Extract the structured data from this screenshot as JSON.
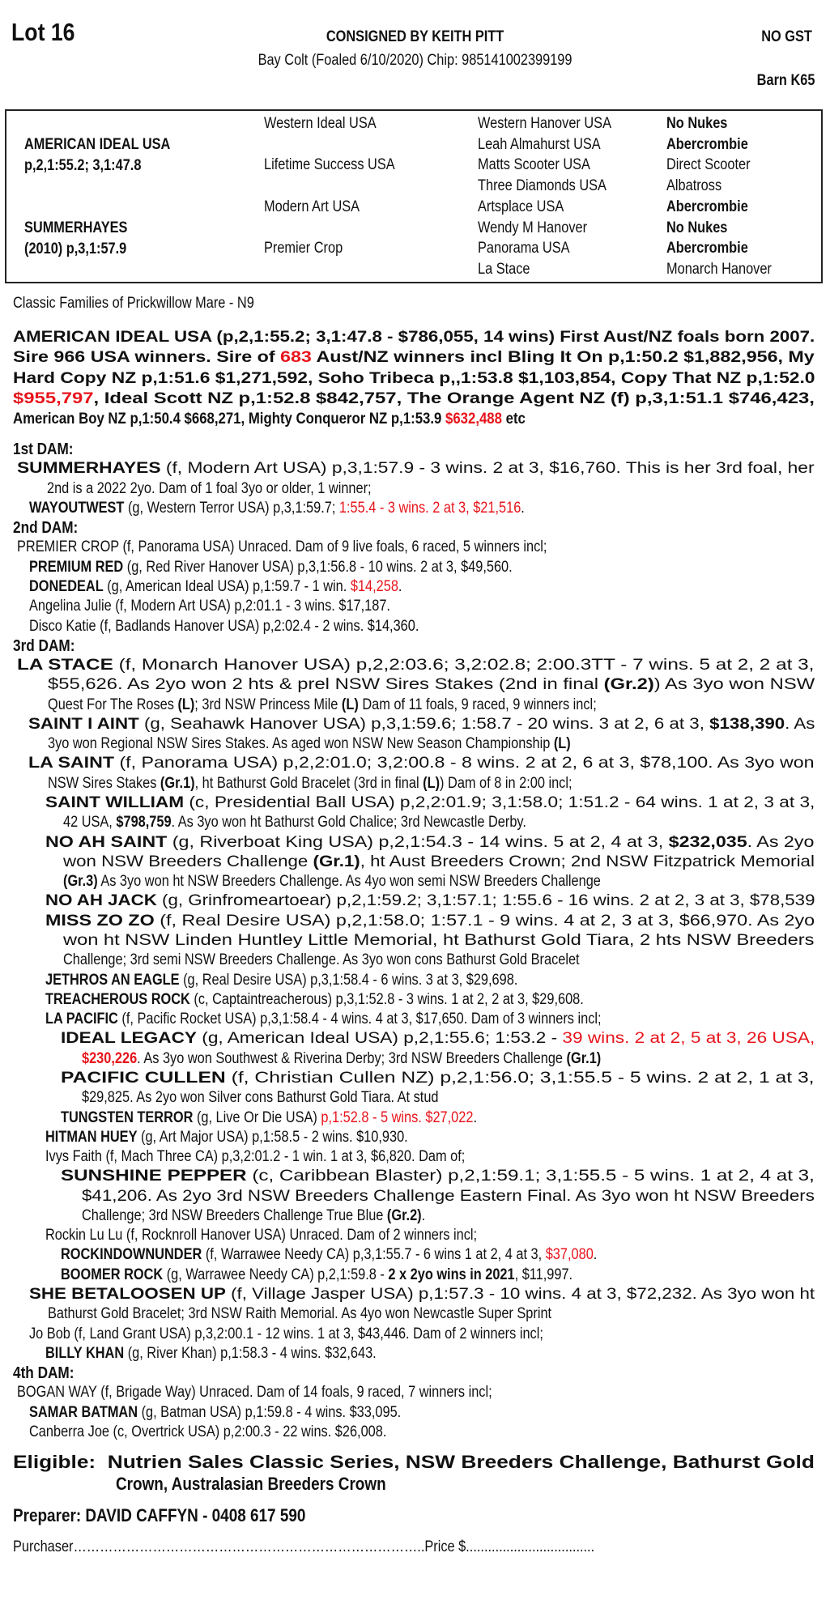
{
  "header": {
    "lot": "Lot 16",
    "consignor": "CONSIGNED BY KEITH PITT",
    "gst": "NO GST",
    "description": "Bay Colt (Foaled 6/10/2020) Chip: 985141002399199",
    "barn": "Barn K65"
  },
  "colors": {
    "text": "#111111",
    "highlight_red": "#e8141c",
    "border": "#222222"
  },
  "pedigree": {
    "sire": {
      "name": "AMERICAN IDEAL USA",
      "record": "p,2,1:55.2; 3,1:47.8"
    },
    "dam": {
      "name": "SUMMERHAYES",
      "record": "(2010) p,3,1:57.9"
    },
    "grandparents": [
      "Western Ideal USA",
      "Lifetime Success USA",
      "Modern Art USA",
      "Premier Crop"
    ],
    "great_grandparents": [
      "Western Hanover USA",
      "Leah Almahurst USA",
      "Matts Scooter USA",
      "Three Diamonds USA",
      "Artsplace USA",
      "Wendy M Hanover",
      "Panorama USA",
      "La Stace"
    ],
    "great_great_grandparents": [
      {
        "name": "No Nukes",
        "bold": true
      },
      {
        "name": "Abercrombie",
        "bold": true
      },
      {
        "name": "Direct Scooter",
        "bold": false
      },
      {
        "name": "Albatross",
        "bold": false
      },
      {
        "name": "Abercrombie",
        "bold": true
      },
      {
        "name": "No Nukes",
        "bold": true
      },
      {
        "name": "Abercrombie",
        "bold": true
      },
      {
        "name": "Monarch Hanover",
        "bold": false
      }
    ]
  },
  "family": "Classic Families of Prickwillow Mare - N9",
  "sire_notes": [
    [
      {
        "t": "AMERICAN IDEAL USA (p,2,1:55.2; 3,1:47.8 - $786,055, 14 wins) First Aust/NZ foals born 2007."
      }
    ],
    [
      {
        "t": "Sire 966 USA winners. Sire of "
      },
      {
        "t": "683",
        "red": true
      },
      {
        "t": " Aust/NZ winners incl Bling It On p,1:50.2 $1,882,956, My"
      }
    ],
    [
      {
        "t": "Hard Copy NZ p,1:51.6 $1,271,592, Soho Tribeca p,,1:53.8 $1,103,854, Copy That NZ p,1:52.0"
      }
    ],
    [
      {
        "t": "$955,797",
        "red": true
      },
      {
        "t": ", Ideal Scott NZ p,1:52.8 $842,757, The Orange Agent NZ (f) p,3,1:51.1 $746,423,"
      }
    ],
    [
      {
        "t": "American Boy NZ p,1:50.4 $668,271, Mighty Conqueror NZ p,1:53.9 "
      },
      {
        "t": "$632,488",
        "red": true
      },
      {
        "t": " etc"
      }
    ]
  ],
  "extended_pedigree": [
    [
      {
        "t": "1st DAM:",
        "b": true
      }
    ],
    [
      {
        "t": "SUMMERHAYES",
        "b": true
      },
      {
        "t": " (f, Modern Art USA) p,3,1:57.9 - 3 wins. 2 at 3, $16,760. This is her 3rd foal, her"
      }
    ],
    [
      {
        "t": "2nd is a 2022 2yo. Dam of 1 foal 3yo or older, 1 winner;"
      }
    ],
    [
      {
        "t": "WAYOUTWEST",
        "b": true
      },
      {
        "t": " (g, Western Terror USA) p,3,1:59.7; "
      },
      {
        "t": "1:55.4 - 3 wins. 2 at 3, $21,516",
        "red": true
      },
      {
        "t": "."
      }
    ],
    [
      {
        "t": "2nd DAM:",
        "b": true
      }
    ],
    [
      {
        "t": "PREMIER CROP (f, Panorama USA) Unraced. Dam of 9 live foals, 6 raced, 5 winners incl;"
      }
    ],
    [
      {
        "t": "PREMIUM RED",
        "b": true
      },
      {
        "t": " (g, Red River Hanover USA) p,3,1:56.8 - 10 wins. 2 at 3, $49,560."
      }
    ],
    [
      {
        "t": "DONEDEAL",
        "b": true
      },
      {
        "t": " (g, American Ideal USA) p,1:59.7 - 1 win. "
      },
      {
        "t": "$14,258",
        "red": true
      },
      {
        "t": "."
      }
    ],
    [
      {
        "t": "Angelina Julie (f, Modern Art USA) p,2:01.1 - 3 wins. $17,187."
      }
    ],
    [
      {
        "t": "Disco Katie (f, Badlands Hanover USA) p,2:02.4 - 2 wins. $14,360."
      }
    ],
    [
      {
        "t": "3rd DAM:",
        "b": true
      }
    ],
    [
      {
        "t": "LA STACE",
        "b": true
      },
      {
        "t": " (f, Monarch Hanover USA) p,2,2:03.6; 3,2:02.8; 2:00.3TT - 7 wins. 5 at 2, 2 at 3,"
      }
    ],
    [
      {
        "t": "$55,626. As 2yo won 2 hts & prel NSW Sires Stakes (2nd in final "
      },
      {
        "t": "(Gr.2)",
        "b": true
      },
      {
        "t": ") As 3yo won NSW"
      }
    ],
    [
      {
        "t": "Quest For The Roses "
      },
      {
        "t": "(L)",
        "b": true
      },
      {
        "t": "; 3rd NSW Princess Mile "
      },
      {
        "t": "(L)",
        "b": true
      },
      {
        "t": " Dam of 11 foals, 9 raced, 9 winners incl;"
      }
    ],
    [
      {
        "t": "SAINT I AINT",
        "b": true
      },
      {
        "t": " (g, Seahawk Hanover USA) p,3,1:59.6; 1:58.7 - 20 wins. 3 at 2, 6 at 3, "
      },
      {
        "t": "$138,390",
        "b": true
      },
      {
        "t": ". As"
      }
    ],
    [
      {
        "t": "3yo won Regional NSW Sires Stakes. As aged won NSW New Season Championship "
      },
      {
        "t": "(L)",
        "b": true
      }
    ],
    [
      {
        "t": "LA SAINT",
        "b": true
      },
      {
        "t": " (f, Panorama USA) p,2,2:01.0; 3,2:00.8 - 8 wins. 2 at 2, 6 at 3, $78,100. As 3yo won"
      }
    ],
    [
      {
        "t": "NSW Sires Stakes "
      },
      {
        "t": "(Gr.1)",
        "b": true
      },
      {
        "t": ", ht Bathurst Gold Bracelet (3rd in final "
      },
      {
        "t": "(L)",
        "b": true
      },
      {
        "t": ") Dam of 8 in 2:00 incl;"
      }
    ],
    [
      {
        "t": "SAINT WILLIAM",
        "b": true
      },
      {
        "t": " (c, Presidential Ball USA) p,2,2:01.9; 3,1:58.0; 1:51.2 - 64 wins. 1 at 2, 3 at 3,"
      }
    ],
    [
      {
        "t": "42 USA, "
      },
      {
        "t": "$798,759",
        "b": true
      },
      {
        "t": ". As 3yo won ht Bathurst Gold Chalice; 3rd Newcastle Derby."
      }
    ],
    [
      {
        "t": "NO AH SAINT",
        "b": true
      },
      {
        "t": " (g, Riverboat King USA) p,2,1:54.3 - 14 wins. 5 at 2, 4 at 3, "
      },
      {
        "t": "$232,035",
        "b": true
      },
      {
        "t": ". As 2yo"
      }
    ],
    [
      {
        "t": "won NSW Breeders Challenge "
      },
      {
        "t": "(Gr.1)",
        "b": true
      },
      {
        "t": ", ht Aust Breeders Crown; 2nd NSW Fitzpatrick Memorial"
      }
    ],
    [
      {
        "t": "(Gr.3)",
        "b": true
      },
      {
        "t": " As 3yo won ht NSW Breeders Challenge. As 4yo won semi NSW Breeders Challenge"
      }
    ],
    [
      {
        "t": "NO AH JACK",
        "b": true
      },
      {
        "t": " (g, Grinfromeartoear) p,2,1:59.2; 3,1:57.1; 1:55.6 - 16 wins. 2 at 2, 3 at 3, $78,539"
      }
    ],
    [
      {
        "t": "MISS ZO ZO",
        "b": true
      },
      {
        "t": " (f, Real Desire USA) p,2,1:58.0; 1:57.1 - 9 wins. 4 at 2, 3 at 3, $66,970. As 2yo"
      }
    ],
    [
      {
        "t": "won ht NSW Linden Huntley Little Memorial, ht Bathurst Gold Tiara, 2 hts NSW Breeders"
      }
    ],
    [
      {
        "t": "Challenge; 3rd semi NSW Breeders Challenge. As 3yo won cons Bathurst Gold Bracelet"
      }
    ],
    [
      {
        "t": "JETHROS AN EAGLE",
        "b": true
      },
      {
        "t": " (g, Real Desire USA) p,3,1:58.4 - 6 wins. 3 at 3, $29,698."
      }
    ],
    [
      {
        "t": "TREACHEROUS ROCK",
        "b": true
      },
      {
        "t": " (c, Captaintreacherous) p,3,1:52.8 - 3 wins. 1 at 2, 2 at 3, $29,608."
      }
    ],
    [
      {
        "t": "LA PACIFIC",
        "b": true
      },
      {
        "t": " (f, Pacific Rocket USA) p,3,1:58.4 - 4 wins. 4 at 3, $17,650. Dam of 3 winners incl;"
      }
    ],
    [
      {
        "t": "IDEAL LEGACY",
        "b": true
      },
      {
        "t": " (g, American Ideal USA) p,2,1:55.6; 1:53.2 - "
      },
      {
        "t": "39 wins. 2 at 2, 5 at 3, 26 USA,",
        "red": true
      }
    ],
    [
      {
        "t": "$230,226",
        "red": true,
        "b": true
      },
      {
        "t": ". As 3yo won Southwest & Riverina Derby; 3rd NSW Breeders Challenge "
      },
      {
        "t": "(Gr.1)",
        "b": true
      }
    ],
    [
      {
        "t": "PACIFIC CULLEN",
        "b": true
      },
      {
        "t": " (f, Christian Cullen NZ) p,2,1:56.0; 3,1:55.5 - 5 wins. 2 at 2, 1 at 3,"
      }
    ],
    [
      {
        "t": "$29,825. As 2yo won Silver cons Bathurst Gold Tiara. At stud"
      }
    ],
    [
      {
        "t": "TUNGSTEN TERROR",
        "b": true
      },
      {
        "t": " (g, Live Or Die USA) "
      },
      {
        "t": "p,1:52.8 - 5 wins. $27,022",
        "red": true
      },
      {
        "t": "."
      }
    ],
    [
      {
        "t": "HITMAN HUEY",
        "b": true
      },
      {
        "t": " (g, Art Major USA) p,1:58.5 - 2 wins. $10,930."
      }
    ],
    [
      {
        "t": "Ivys Faith (f, Mach Three CA) p,3,2:01.2 - 1 win. 1 at 3, $6,820. Dam of;"
      }
    ],
    [
      {
        "t": "SUNSHINE PEPPER",
        "b": true
      },
      {
        "t": " (c, Caribbean Blaster) p,2,1:59.1; 3,1:55.5 - 5 wins. 1 at 2, 4 at 3,"
      }
    ],
    [
      {
        "t": "$41,206. As 2yo 3rd NSW Breeders Challenge Eastern Final. As 3yo won ht NSW Breeders"
      }
    ],
    [
      {
        "t": "Challenge; 3rd NSW Breeders Challenge True Blue "
      },
      {
        "t": "(Gr.2)",
        "b": true
      },
      {
        "t": "."
      }
    ],
    [
      {
        "t": "Rockin Lu Lu (f, Rocknroll Hanover USA) Unraced. Dam of 2 winners incl;"
      }
    ],
    [
      {
        "t": "ROCKINDOWNUNDER",
        "b": true
      },
      {
        "t": " (f, Warrawee Needy CA) p,3,1:55.7 - 6 wins 1 at 2, 4 at 3, "
      },
      {
        "t": "$37,080",
        "red": true
      },
      {
        "t": "."
      }
    ],
    [
      {
        "t": "BOOMER ROCK",
        "b": true
      },
      {
        "t": " (g, Warrawee Needy CA) p,2,1:59.8 - "
      },
      {
        "t": "2 x 2yo wins in 2021",
        "b": true
      },
      {
        "t": ", $11,997."
      }
    ],
    [
      {
        "t": "SHE BETALOOSEN UP",
        "b": true
      },
      {
        "t": " (f, Village Jasper USA) p,1:57.3 - 10 wins. 4 at 3, $72,232. As 3yo won ht"
      }
    ],
    [
      {
        "t": "Bathurst Gold Bracelet; 3rd NSW Raith Memorial. As 4yo won Newcastle Super Sprint"
      }
    ],
    [
      {
        "t": "Jo Bob (f, Land Grant USA) p,3,2:00.1 - 12 wins. 1 at 3, $43,446. Dam of 2 winners incl;"
      }
    ],
    [
      {
        "t": "BILLY KHAN",
        "b": true
      },
      {
        "t": " (g, River Khan) p,1:58.3 - 4 wins. $32,643."
      }
    ],
    [
      {
        "t": "4th DAM:",
        "b": true
      }
    ],
    [
      {
        "t": "BOGAN WAY (f, Brigade Way) Unraced. Dam of 14 foals, 9 raced, 7 winners incl;"
      }
    ],
    [
      {
        "t": "SAMAR BATMAN",
        "b": true
      },
      {
        "t": " (g, Batman USA) p,1:59.8 - 4 wins. $33,095."
      }
    ],
    [
      {
        "t": "Canberra Joe (c, Overtrick USA) p,2:00.3 - 22 wins. $26,008."
      }
    ]
  ],
  "eligible": [
    [
      {
        "t": "Eligible:  Nutrien Sales Classic Series, NSW Breeders Challenge, Bathurst Gold"
      }
    ],
    [
      {
        "t": "Crown, Australasian Breeders Crown"
      }
    ]
  ],
  "preparer": "Preparer: DAVID CAFFYN - 0408 617 590",
  "purchaser": {
    "label": "Purchaser……………………………………………………………………..",
    "price_label": "Price $..................................."
  }
}
